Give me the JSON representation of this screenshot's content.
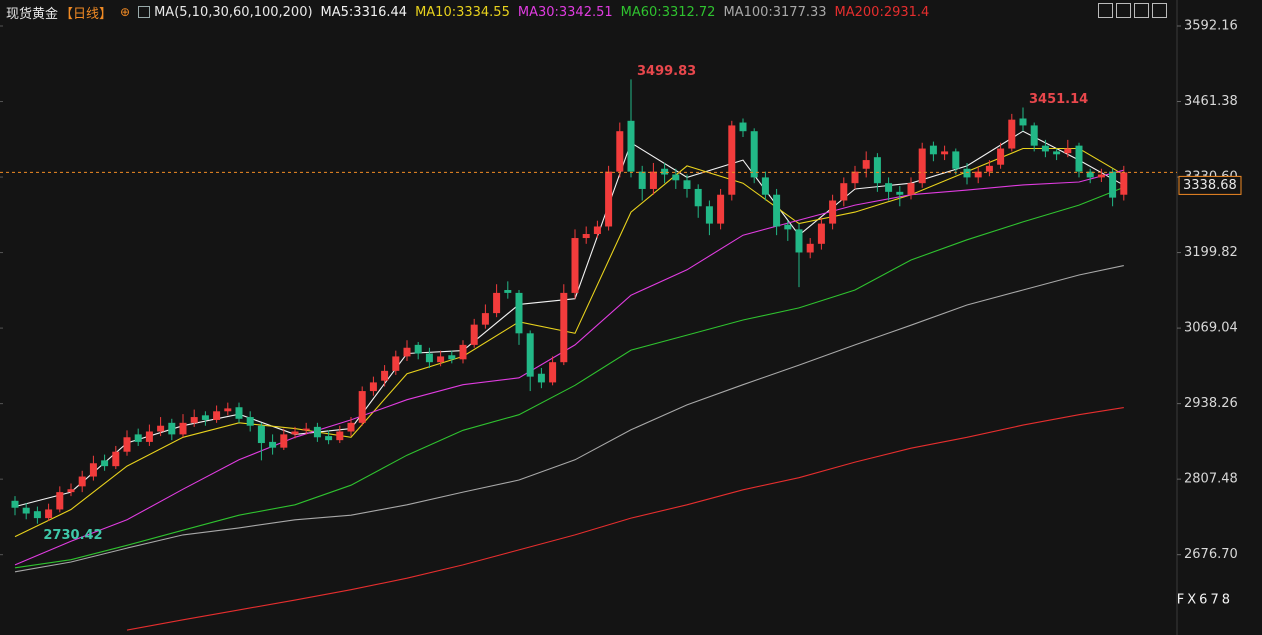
{
  "chart_data": {
    "type": "candlestick",
    "title": "现货黄金",
    "period": "【日线】",
    "indicator": "MA(5,10,30,60,100,200)",
    "up_color": "#f23c3c",
    "down_color": "#22b887",
    "ylim": [
      2537.6,
      3637.2
    ],
    "yticks": [
      3592.16,
      3461.38,
      {
        "value": 3330.6,
        "label": "3330.60"
      },
      3199.82,
      3069.04,
      2938.26,
      2807.48,
      {
        "value": 2676.7,
        "label": "2676.70"
      }
    ],
    "open": [
      2770,
      2758,
      2752,
      2740,
      2755,
      2785,
      2795,
      2812,
      2840,
      2830,
      2855,
      2885,
      2872,
      2890,
      2905,
      2885,
      2905,
      2918,
      2910,
      2925,
      2932,
      2915,
      2900,
      2872,
      2862,
      2885,
      2892,
      2898,
      2882,
      2875,
      2890,
      2905,
      2960,
      2978,
      2995,
      3020,
      3040,
      3025,
      3010,
      3022,
      3015,
      3040,
      3075,
      3095,
      3135,
      3130,
      3060,
      2990,
      2975,
      3010,
      3130,
      3225,
      3232,
      3245,
      3340,
      3428,
      3340,
      3310,
      3345,
      3335,
      3325,
      3310,
      3280,
      3250,
      3300,
      3425,
      3410,
      3330,
      3300,
      3248,
      3240,
      3200,
      3215,
      3250,
      3290,
      3320,
      3345,
      3365,
      3320,
      3305,
      3300,
      3320,
      3385,
      3370,
      3375,
      3345,
      3330,
      3340,
      3352,
      3380,
      3432,
      3420,
      3385,
      3375,
      3372,
      3385,
      3340,
      3330,
      3340,
      3300
    ],
    "high": [
      2778,
      2766,
      2760,
      2765,
      2795,
      2800,
      2822,
      2848,
      2850,
      2865,
      2892,
      2895,
      2902,
      2915,
      2912,
      2920,
      2928,
      2925,
      2935,
      2940,
      2940,
      2925,
      2905,
      2885,
      2895,
      2898,
      2905,
      2905,
      2892,
      2900,
      2915,
      2968,
      2985,
      3005,
      3030,
      3048,
      3045,
      3035,
      3030,
      3030,
      3048,
      3085,
      3110,
      3145,
      3150,
      3135,
      3065,
      3000,
      3020,
      3145,
      3240,
      3245,
      3255,
      3350,
      3425,
      3499.83,
      3350,
      3355,
      3355,
      3345,
      3335,
      3318,
      3290,
      3310,
      3428,
      3432,
      3415,
      3340,
      3310,
      3255,
      3250,
      3225,
      3260,
      3300,
      3330,
      3350,
      3375,
      3372,
      3330,
      3315,
      3330,
      3390,
      3392,
      3385,
      3380,
      3355,
      3348,
      3360,
      3390,
      3440,
      3451.14,
      3425,
      3395,
      3380,
      3395,
      3390,
      3345,
      3345,
      3345,
      3350
    ],
    "low": [
      2745,
      2738,
      2730.42,
      2735,
      2750,
      2778,
      2785,
      2805,
      2822,
      2825,
      2848,
      2865,
      2865,
      2882,
      2875,
      2880,
      2898,
      2900,
      2905,
      2918,
      2905,
      2890,
      2840,
      2850,
      2858,
      2878,
      2885,
      2872,
      2868,
      2870,
      2882,
      2900,
      2952,
      2968,
      2988,
      3012,
      3015,
      3000,
      3003,
      3008,
      3008,
      3035,
      3068,
      3088,
      3120,
      3040,
      2960,
      2965,
      2970,
      3005,
      3120,
      3215,
      3225,
      3238,
      3330,
      3330,
      3290,
      3300,
      3320,
      3310,
      3295,
      3260,
      3230,
      3240,
      3290,
      3400,
      3320,
      3290,
      3230,
      3220,
      3140,
      3190,
      3205,
      3240,
      3280,
      3310,
      3330,
      3305,
      3290,
      3280,
      3292,
      3312,
      3358,
      3360,
      3335,
      3318,
      3320,
      3332,
      3345,
      3375,
      3410,
      3375,
      3365,
      3360,
      3365,
      3330,
      3320,
      3322,
      3280,
      3290
    ],
    "close": [
      2758,
      2748,
      2740,
      2755,
      2785,
      2790,
      2812,
      2835,
      2830,
      2855,
      2880,
      2872,
      2890,
      2900,
      2885,
      2905,
      2915,
      2910,
      2925,
      2930,
      2912,
      2900,
      2870,
      2862,
      2885,
      2890,
      2895,
      2880,
      2875,
      2890,
      2905,
      2960,
      2975,
      2995,
      3020,
      3035,
      3025,
      3010,
      3020,
      3015,
      3040,
      3075,
      3095,
      3130,
      3130,
      3060,
      2985,
      2975,
      3010,
      3130,
      3225,
      3232,
      3245,
      3340,
      3410,
      3340,
      3310,
      3340,
      3335,
      3325,
      3310,
      3280,
      3250,
      3300,
      3420,
      3410,
      3330,
      3300,
      3245,
      3240,
      3200,
      3215,
      3250,
      3290,
      3320,
      3340,
      3360,
      3320,
      3305,
      3300,
      3320,
      3380,
      3370,
      3375,
      3345,
      3330,
      3340,
      3350,
      3380,
      3430,
      3420,
      3385,
      3375,
      3370,
      3380,
      3340,
      3330,
      3335,
      3295,
      3338.68
    ],
    "ma_x": [
      0,
      5,
      10,
      15,
      20,
      25,
      30,
      35,
      40,
      45,
      50,
      55,
      60,
      65,
      70,
      75,
      80,
      85,
      90,
      95,
      99
    ],
    "series": [
      {
        "name": "MA5:3316.44",
        "color": "#f2f2f2",
        "values": [
          2760,
          2785,
          2870,
          2900,
          2920,
          2885,
          2895,
          3025,
          3030,
          3110,
          3120,
          3390,
          3330,
          3360,
          3230,
          3310,
          3320,
          3350,
          3410,
          3360,
          3316.44
        ]
      },
      {
        "name": "MA10:3334.55",
        "color": "#e8d21d",
        "values": [
          2708,
          2755,
          2830,
          2880,
          2905,
          2895,
          2880,
          2990,
          3020,
          3080,
          3060,
          3270,
          3350,
          3320,
          3250,
          3270,
          3300,
          3340,
          3380,
          3380,
          3334.55
        ]
      },
      {
        "name": "MA30:3342.51",
        "color": "#e03ce0",
        "values": [
          2659,
          2700,
          2737,
          2790,
          2841,
          2880,
          2910,
          2945,
          2971,
          2983,
          3040,
          3126,
          3170,
          3230,
          3256,
          3282,
          3300,
          3308,
          3317,
          3322,
          3342.51
        ]
      },
      {
        "name": "MA60:3312.72",
        "color": "#2fc22f",
        "values": [
          2654,
          2668,
          2693,
          2719,
          2745,
          2763,
          2797,
          2849,
          2892,
          2919,
          2970,
          3031,
          3057,
          3083,
          3104,
          3135,
          3187,
          3222,
          3253,
          3282,
          3312.72
        ]
      },
      {
        "name": "MA100:3177.33",
        "color": "#a8a8a8",
        "values": [
          2647,
          2664,
          2688,
          2711,
          2723,
          2737,
          2745,
          2763,
          2785,
          2806,
          2841,
          2893,
          2936,
          2971,
          3005,
          3040,
          3074,
          3109,
          3135,
          3161,
          3177.33
        ]
      },
      {
        "name": "MA200:2931.4",
        "color": "#e52e2e",
        "values": [
          null,
          null,
          2546,
          2564,
          2581,
          2598,
          2616,
          2636,
          2659,
          2685,
          2711,
          2740,
          2763,
          2789,
          2810,
          2837,
          2861,
          2880,
          2901,
          2919,
          2931.4
        ]
      }
    ],
    "annotations": [
      {
        "index": 55,
        "value": 3499.83,
        "color": "#e8474c"
      },
      {
        "index": 90,
        "value": 3451.14,
        "color": "#e8474c"
      },
      {
        "index": 2,
        "value": 2730.42,
        "color": "#3fc9a9"
      }
    ],
    "price_line_color": "#f08a24",
    "watermark": "FX678"
  }
}
